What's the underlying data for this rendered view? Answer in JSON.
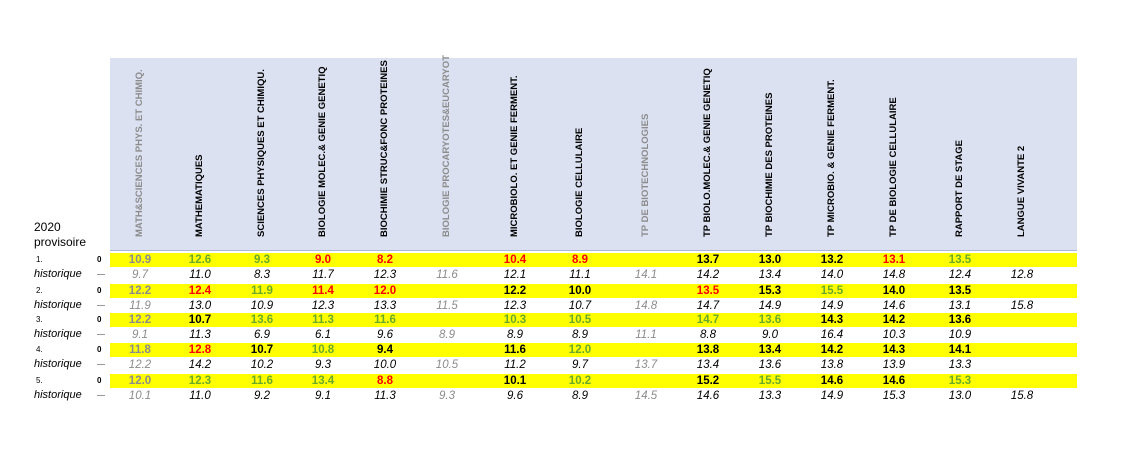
{
  "corner": {
    "year": "2020",
    "label": "provisoire"
  },
  "colors": {
    "red": "#ff0000",
    "green": "#6aaa2a",
    "grey": "#8c8c8c",
    "black": "#000000",
    "highlight": "#ffff00",
    "header_bg": "#dbe1f1"
  },
  "columns": [
    {
      "label": "MATH&SCIENCES PHYS. ET CHIMIQ.",
      "style": "grey"
    },
    {
      "label": "MATHEMATIQUES",
      "style": "black"
    },
    {
      "label": "SCIENCES PHYSIQUES ET CHIMIQU.",
      "style": "black"
    },
    {
      "label": "BIOLOGIE MOLEC.& GENIE GENETIQ",
      "style": "black"
    },
    {
      "label": "BIOCHIMIE STRUC&FONC PROTEINES",
      "style": "black"
    },
    {
      "label": "BIOLOGIE PROCARYOTES&EUCARYOT",
      "style": "grey"
    },
    {
      "label": "MICROBIOLO. ET GENIE FERMENT.",
      "style": "black"
    },
    {
      "label": "BIOLOGIE CELLULAIRE",
      "style": "black"
    },
    {
      "label": "TP DE BIOTECHNOLOGIES",
      "style": "grey"
    },
    {
      "label": "TP BIOLO.MOLEC.& GENIE GENETIQ",
      "style": "black"
    },
    {
      "label": "TP BIOCHIMIE DES PROTEINES",
      "style": "black"
    },
    {
      "label": "TP MICROBIO. & GENIE FERMENT.",
      "style": "black"
    },
    {
      "label": "TP DE BIOLOGIE CELLULAIRE",
      "style": "black"
    },
    {
      "label": "RAPPORT DE STAGE",
      "style": "black"
    },
    {
      "label": "LANGUE VIVANTE 2",
      "style": "black"
    }
  ],
  "hist_label": "historique",
  "rows": [
    {
      "num": "1.",
      "zero": "0",
      "current": [
        {
          "v": "10.9",
          "c": "grey"
        },
        {
          "v": "12.6",
          "c": "green"
        },
        {
          "v": "9.3",
          "c": "green"
        },
        {
          "v": "9.0",
          "c": "red"
        },
        {
          "v": "8.2",
          "c": "red"
        },
        {
          "v": "",
          "c": "grey"
        },
        {
          "v": "10.4",
          "c": "red"
        },
        {
          "v": "8.9",
          "c": "red"
        },
        {
          "v": "",
          "c": "grey"
        },
        {
          "v": "13.7",
          "c": "black"
        },
        {
          "v": "13.0",
          "c": "black"
        },
        {
          "v": "13.2",
          "c": "black"
        },
        {
          "v": "13.1",
          "c": "red"
        },
        {
          "v": "13.5",
          "c": "green"
        },
        {
          "v": "",
          "c": "black"
        }
      ],
      "history": [
        {
          "v": "9.7",
          "c": "grey"
        },
        {
          "v": "11.0",
          "c": "black"
        },
        {
          "v": "8.3",
          "c": "black"
        },
        {
          "v": "11.7",
          "c": "black"
        },
        {
          "v": "12.3",
          "c": "black"
        },
        {
          "v": "11.6",
          "c": "grey"
        },
        {
          "v": "12.1",
          "c": "black"
        },
        {
          "v": "11.1",
          "c": "black"
        },
        {
          "v": "14.1",
          "c": "grey"
        },
        {
          "v": "14.2",
          "c": "black"
        },
        {
          "v": "13.4",
          "c": "black"
        },
        {
          "v": "14.0",
          "c": "black"
        },
        {
          "v": "14.8",
          "c": "black"
        },
        {
          "v": "12.4",
          "c": "black"
        },
        {
          "v": "12.8",
          "c": "black"
        }
      ]
    },
    {
      "num": "2.",
      "zero": "0",
      "current": [
        {
          "v": "12.2",
          "c": "grey"
        },
        {
          "v": "12.4",
          "c": "red"
        },
        {
          "v": "11.9",
          "c": "green"
        },
        {
          "v": "11.4",
          "c": "red"
        },
        {
          "v": "12.0",
          "c": "red"
        },
        {
          "v": "",
          "c": "grey"
        },
        {
          "v": "12.2",
          "c": "black"
        },
        {
          "v": "10.0",
          "c": "black"
        },
        {
          "v": "",
          "c": "grey"
        },
        {
          "v": "13.5",
          "c": "red"
        },
        {
          "v": "15.3",
          "c": "black"
        },
        {
          "v": "15.5",
          "c": "green"
        },
        {
          "v": "14.0",
          "c": "black"
        },
        {
          "v": "13.5",
          "c": "black"
        },
        {
          "v": "",
          "c": "black"
        }
      ],
      "history": [
        {
          "v": "11.9",
          "c": "grey"
        },
        {
          "v": "13.0",
          "c": "black"
        },
        {
          "v": "10.9",
          "c": "black"
        },
        {
          "v": "12.3",
          "c": "black"
        },
        {
          "v": "13.3",
          "c": "black"
        },
        {
          "v": "11.5",
          "c": "grey"
        },
        {
          "v": "12.3",
          "c": "black"
        },
        {
          "v": "10.7",
          "c": "black"
        },
        {
          "v": "14.8",
          "c": "grey"
        },
        {
          "v": "14.7",
          "c": "black"
        },
        {
          "v": "14.9",
          "c": "black"
        },
        {
          "v": "14.9",
          "c": "black"
        },
        {
          "v": "14.6",
          "c": "black"
        },
        {
          "v": "13.1",
          "c": "black"
        },
        {
          "v": "15.8",
          "c": "black"
        }
      ]
    },
    {
      "num": "3.",
      "zero": "0",
      "current": [
        {
          "v": "12.2",
          "c": "grey"
        },
        {
          "v": "10.7",
          "c": "black"
        },
        {
          "v": "13.6",
          "c": "green"
        },
        {
          "v": "11.3",
          "c": "green"
        },
        {
          "v": "11.6",
          "c": "green"
        },
        {
          "v": "",
          "c": "grey"
        },
        {
          "v": "10.3",
          "c": "green"
        },
        {
          "v": "10.5",
          "c": "green"
        },
        {
          "v": "",
          "c": "grey"
        },
        {
          "v": "14.7",
          "c": "green"
        },
        {
          "v": "13.6",
          "c": "green"
        },
        {
          "v": "14.3",
          "c": "black"
        },
        {
          "v": "14.2",
          "c": "black"
        },
        {
          "v": "13.6",
          "c": "black"
        },
        {
          "v": "",
          "c": "black"
        }
      ],
      "history": [
        {
          "v": "9.1",
          "c": "grey"
        },
        {
          "v": "11.3",
          "c": "black"
        },
        {
          "v": "6.9",
          "c": "black"
        },
        {
          "v": "6.1",
          "c": "black"
        },
        {
          "v": "9.6",
          "c": "black"
        },
        {
          "v": "8.9",
          "c": "grey"
        },
        {
          "v": "8.9",
          "c": "black"
        },
        {
          "v": "8.9",
          "c": "black"
        },
        {
          "v": "11.1",
          "c": "grey"
        },
        {
          "v": "8.8",
          "c": "black"
        },
        {
          "v": "9.0",
          "c": "black"
        },
        {
          "v": "16.4",
          "c": "black"
        },
        {
          "v": "10.3",
          "c": "black"
        },
        {
          "v": "10.9",
          "c": "black"
        },
        {
          "v": "",
          "c": "black"
        }
      ]
    },
    {
      "num": "4.",
      "zero": "0",
      "current": [
        {
          "v": "11.8",
          "c": "grey"
        },
        {
          "v": "12.8",
          "c": "red"
        },
        {
          "v": "10.7",
          "c": "black"
        },
        {
          "v": "10.8",
          "c": "green"
        },
        {
          "v": "9.4",
          "c": "black"
        },
        {
          "v": "",
          "c": "grey"
        },
        {
          "v": "11.6",
          "c": "black"
        },
        {
          "v": "12.0",
          "c": "green"
        },
        {
          "v": "",
          "c": "grey"
        },
        {
          "v": "13.8",
          "c": "black"
        },
        {
          "v": "13.4",
          "c": "black"
        },
        {
          "v": "14.2",
          "c": "black"
        },
        {
          "v": "14.3",
          "c": "black"
        },
        {
          "v": "14.1",
          "c": "black"
        },
        {
          "v": "",
          "c": "black"
        }
      ],
      "history": [
        {
          "v": "12.2",
          "c": "grey"
        },
        {
          "v": "14.2",
          "c": "black"
        },
        {
          "v": "10.2",
          "c": "black"
        },
        {
          "v": "9.3",
          "c": "black"
        },
        {
          "v": "10.0",
          "c": "black"
        },
        {
          "v": "10.5",
          "c": "grey"
        },
        {
          "v": "11.2",
          "c": "black"
        },
        {
          "v": "9.7",
          "c": "black"
        },
        {
          "v": "13.7",
          "c": "grey"
        },
        {
          "v": "13.4",
          "c": "black"
        },
        {
          "v": "13.6",
          "c": "black"
        },
        {
          "v": "13.8",
          "c": "black"
        },
        {
          "v": "13.9",
          "c": "black"
        },
        {
          "v": "13.3",
          "c": "black"
        },
        {
          "v": "",
          "c": "black"
        }
      ]
    },
    {
      "num": "5.",
      "zero": "0",
      "current": [
        {
          "v": "12.0",
          "c": "grey"
        },
        {
          "v": "12.3",
          "c": "green"
        },
        {
          "v": "11.6",
          "c": "green"
        },
        {
          "v": "13.4",
          "c": "green"
        },
        {
          "v": "8.8",
          "c": "red"
        },
        {
          "v": "",
          "c": "grey"
        },
        {
          "v": "10.1",
          "c": "black"
        },
        {
          "v": "10.2",
          "c": "green"
        },
        {
          "v": "",
          "c": "grey"
        },
        {
          "v": "15.2",
          "c": "black"
        },
        {
          "v": "15.5",
          "c": "green"
        },
        {
          "v": "14.6",
          "c": "black"
        },
        {
          "v": "14.6",
          "c": "black"
        },
        {
          "v": "15.3",
          "c": "green"
        },
        {
          "v": "",
          "c": "black"
        }
      ],
      "history": [
        {
          "v": "10.1",
          "c": "grey"
        },
        {
          "v": "11.0",
          "c": "black"
        },
        {
          "v": "9.2",
          "c": "black"
        },
        {
          "v": "9.1",
          "c": "black"
        },
        {
          "v": "11.3",
          "c": "black"
        },
        {
          "v": "9.3",
          "c": "grey"
        },
        {
          "v": "9.6",
          "c": "black"
        },
        {
          "v": "8.9",
          "c": "black"
        },
        {
          "v": "14.5",
          "c": "grey"
        },
        {
          "v": "14.6",
          "c": "black"
        },
        {
          "v": "13.3",
          "c": "black"
        },
        {
          "v": "14.9",
          "c": "black"
        },
        {
          "v": "15.3",
          "c": "black"
        },
        {
          "v": "13.0",
          "c": "black"
        },
        {
          "v": "15.8",
          "c": "black"
        }
      ]
    }
  ]
}
